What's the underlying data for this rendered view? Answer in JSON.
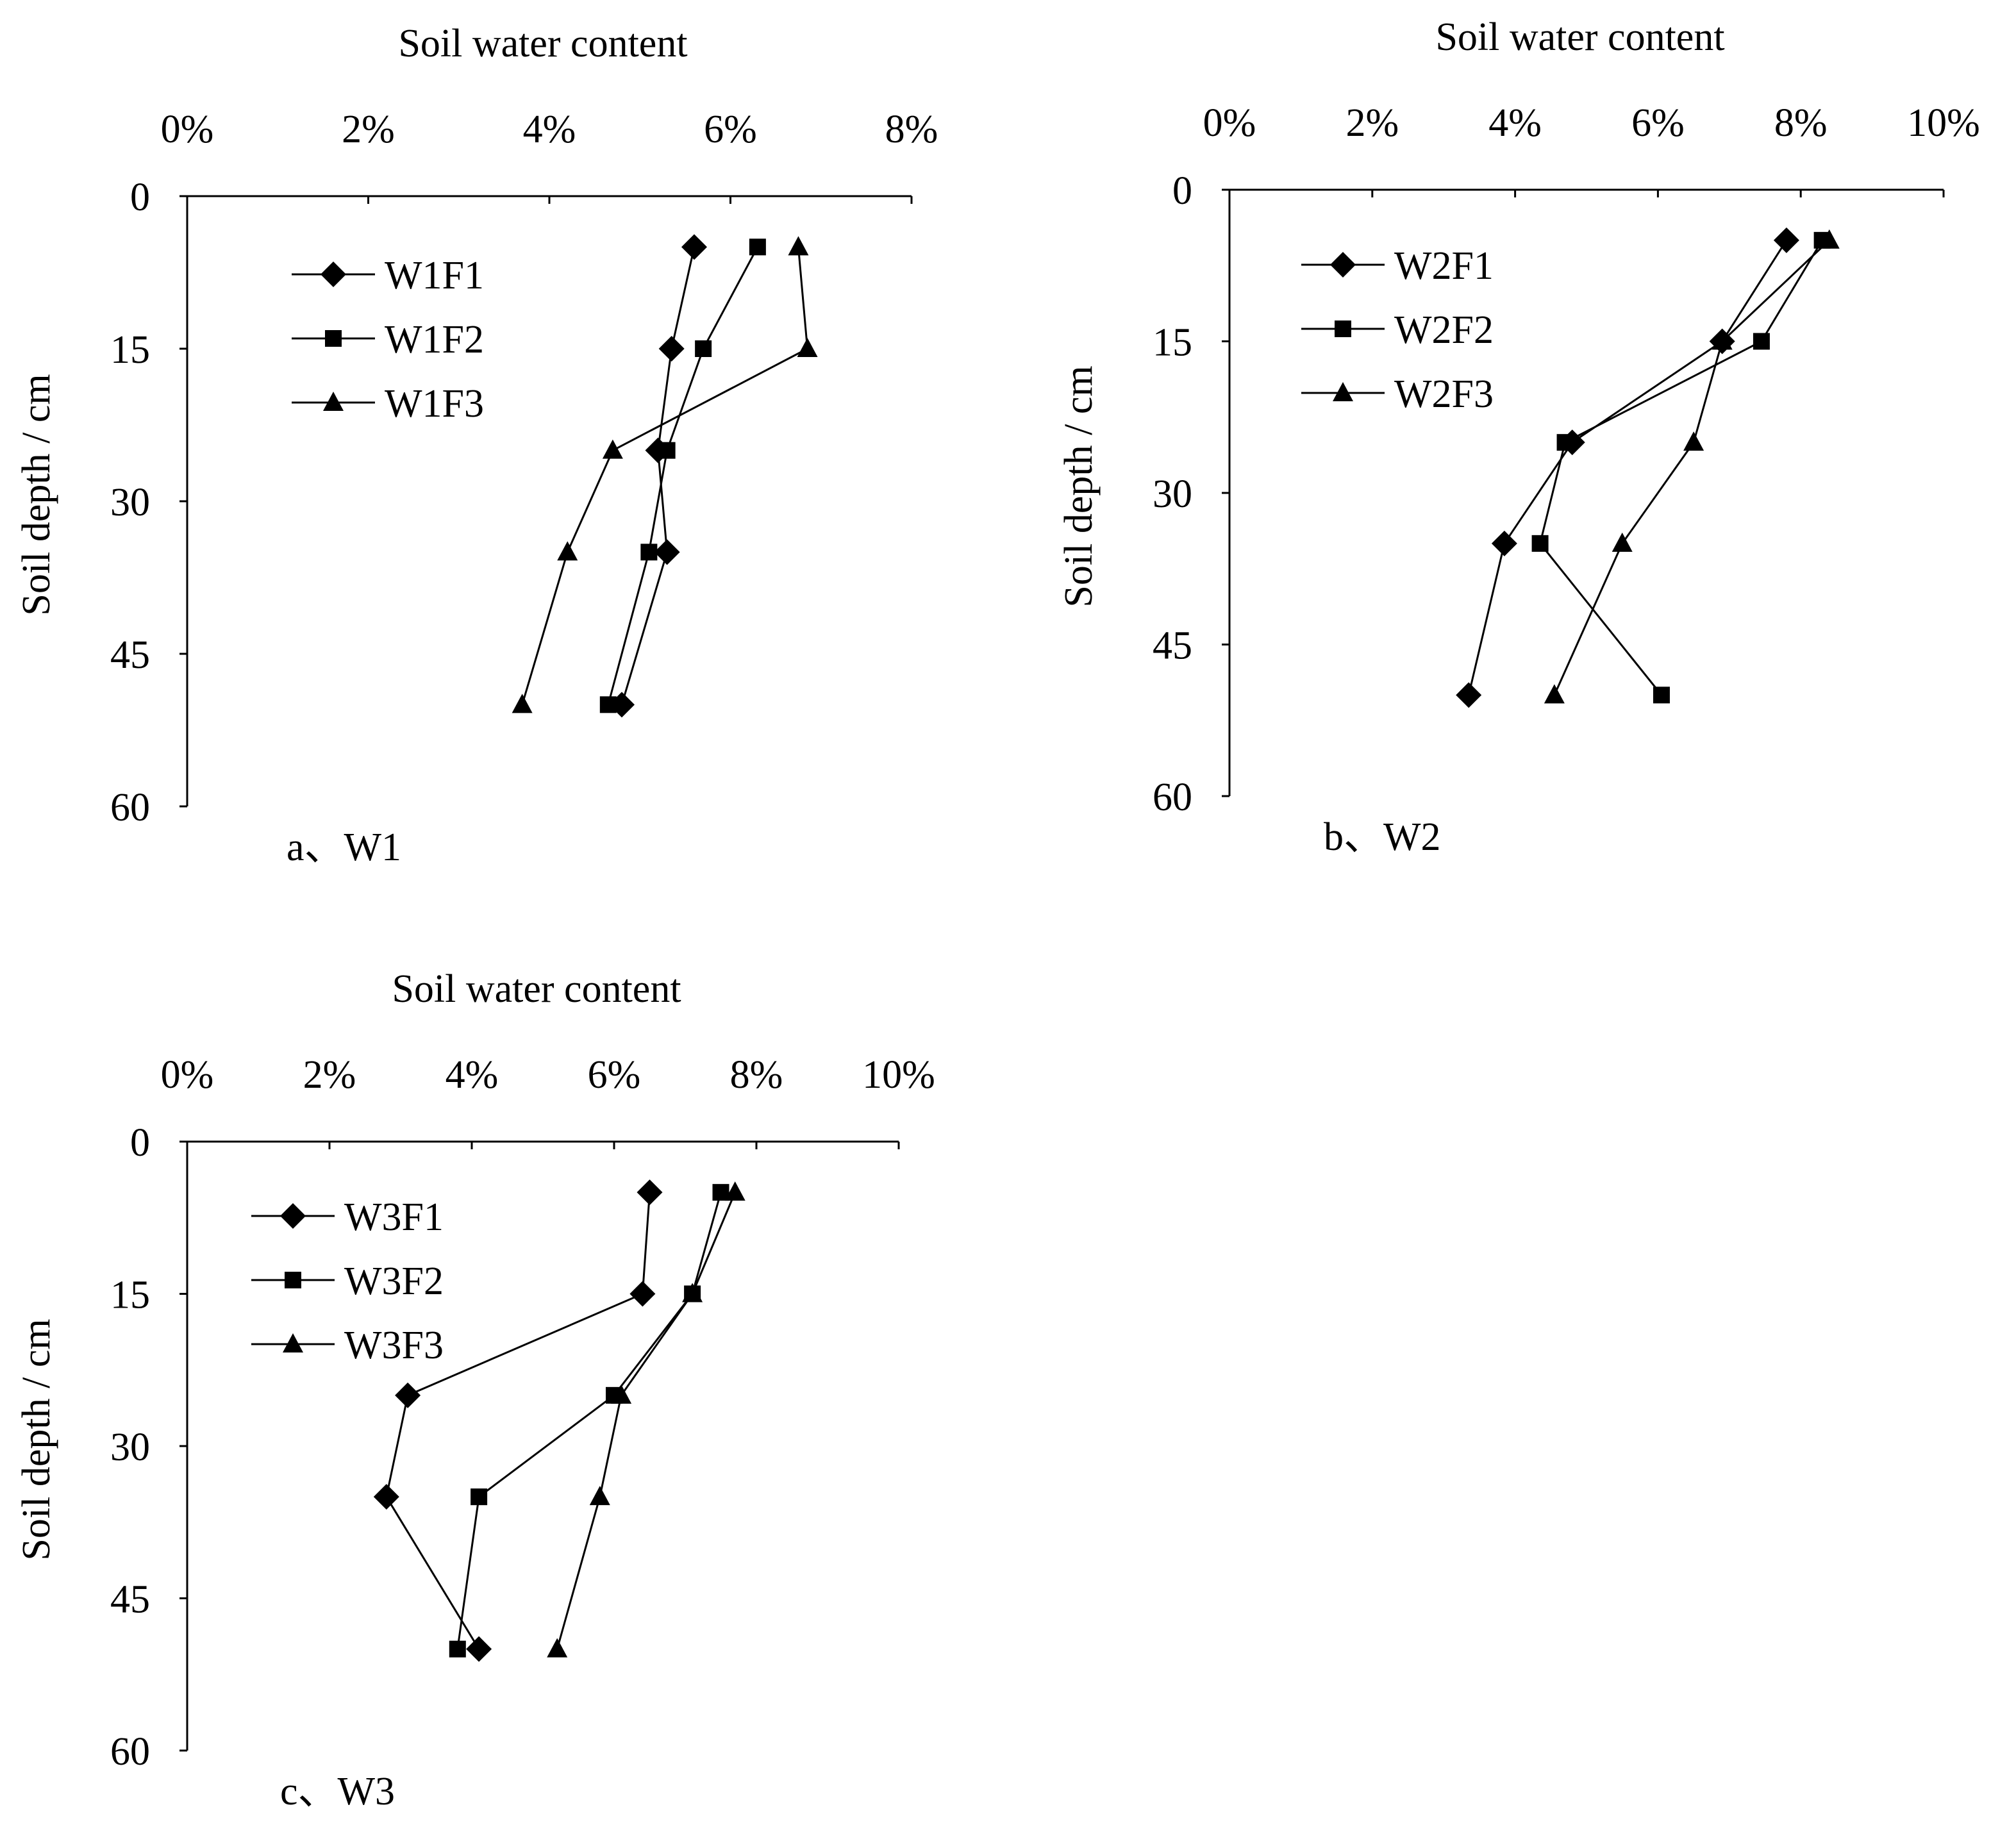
{
  "colors": {
    "ink": "#000000",
    "background": "#ffffff"
  },
  "chart_data": [
    {
      "id": "w1",
      "type": "line",
      "caption": "a、W1",
      "xlabel": "Soil water content",
      "ylabel": "Soil depth / cm",
      "xlim": [
        0,
        8
      ],
      "ylim": [
        0,
        60
      ],
      "x_ticks": [
        "0%",
        "2%",
        "4%",
        "6%",
        "8%"
      ],
      "y_ticks": [
        "0",
        "15",
        "30",
        "45",
        "60"
      ],
      "depths": [
        5,
        15,
        25,
        35,
        50
      ],
      "series": [
        {
          "name": "W1F1",
          "marker": "diamond",
          "values": [
            5.6,
            5.35,
            5.2,
            5.3,
            4.8
          ]
        },
        {
          "name": "W1F2",
          "marker": "square",
          "values": [
            6.3,
            5.7,
            5.3,
            5.1,
            4.65
          ]
        },
        {
          "name": "W1F3",
          "marker": "triangle",
          "values": [
            6.75,
            6.85,
            4.7,
            4.2,
            3.7
          ]
        }
      ]
    },
    {
      "id": "w2",
      "type": "line",
      "caption": "b、W2",
      "xlabel": "Soil water content",
      "ylabel": "Soil depth / cm",
      "xlim": [
        0,
        10
      ],
      "ylim": [
        0,
        60
      ],
      "x_ticks": [
        "0%",
        "2%",
        "4%",
        "6%",
        "8%",
        "10%"
      ],
      "y_ticks": [
        "0",
        "15",
        "30",
        "45",
        "60"
      ],
      "depths": [
        5,
        15,
        25,
        35,
        50
      ],
      "series": [
        {
          "name": "W2F1",
          "marker": "diamond",
          "values": [
            7.8,
            6.9,
            4.8,
            3.85,
            3.35
          ]
        },
        {
          "name": "W2F2",
          "marker": "square",
          "values": [
            8.3,
            7.45,
            4.7,
            4.35,
            6.05
          ]
        },
        {
          "name": "W2F3",
          "marker": "triangle",
          "values": [
            8.4,
            6.9,
            6.5,
            5.5,
            4.55
          ]
        }
      ]
    },
    {
      "id": "w3",
      "type": "line",
      "caption": "c、W3",
      "xlabel": "Soil water content",
      "ylabel": "Soil depth / cm",
      "xlim": [
        0,
        10
      ],
      "ylim": [
        0,
        60
      ],
      "x_ticks": [
        "0%",
        "2%",
        "4%",
        "6%",
        "8%",
        "10%"
      ],
      "y_ticks": [
        "0",
        "15",
        "30",
        "45",
        "60"
      ],
      "depths": [
        5,
        15,
        25,
        35,
        50
      ],
      "series": [
        {
          "name": "W3F1",
          "marker": "diamond",
          "values": [
            6.5,
            6.4,
            3.1,
            2.8,
            4.1
          ]
        },
        {
          "name": "W3F2",
          "marker": "square",
          "values": [
            7.5,
            7.1,
            6.0,
            4.1,
            3.8
          ]
        },
        {
          "name": "W3F3",
          "marker": "triangle",
          "values": [
            7.7,
            7.1,
            6.1,
            5.8,
            5.2
          ]
        }
      ]
    }
  ]
}
